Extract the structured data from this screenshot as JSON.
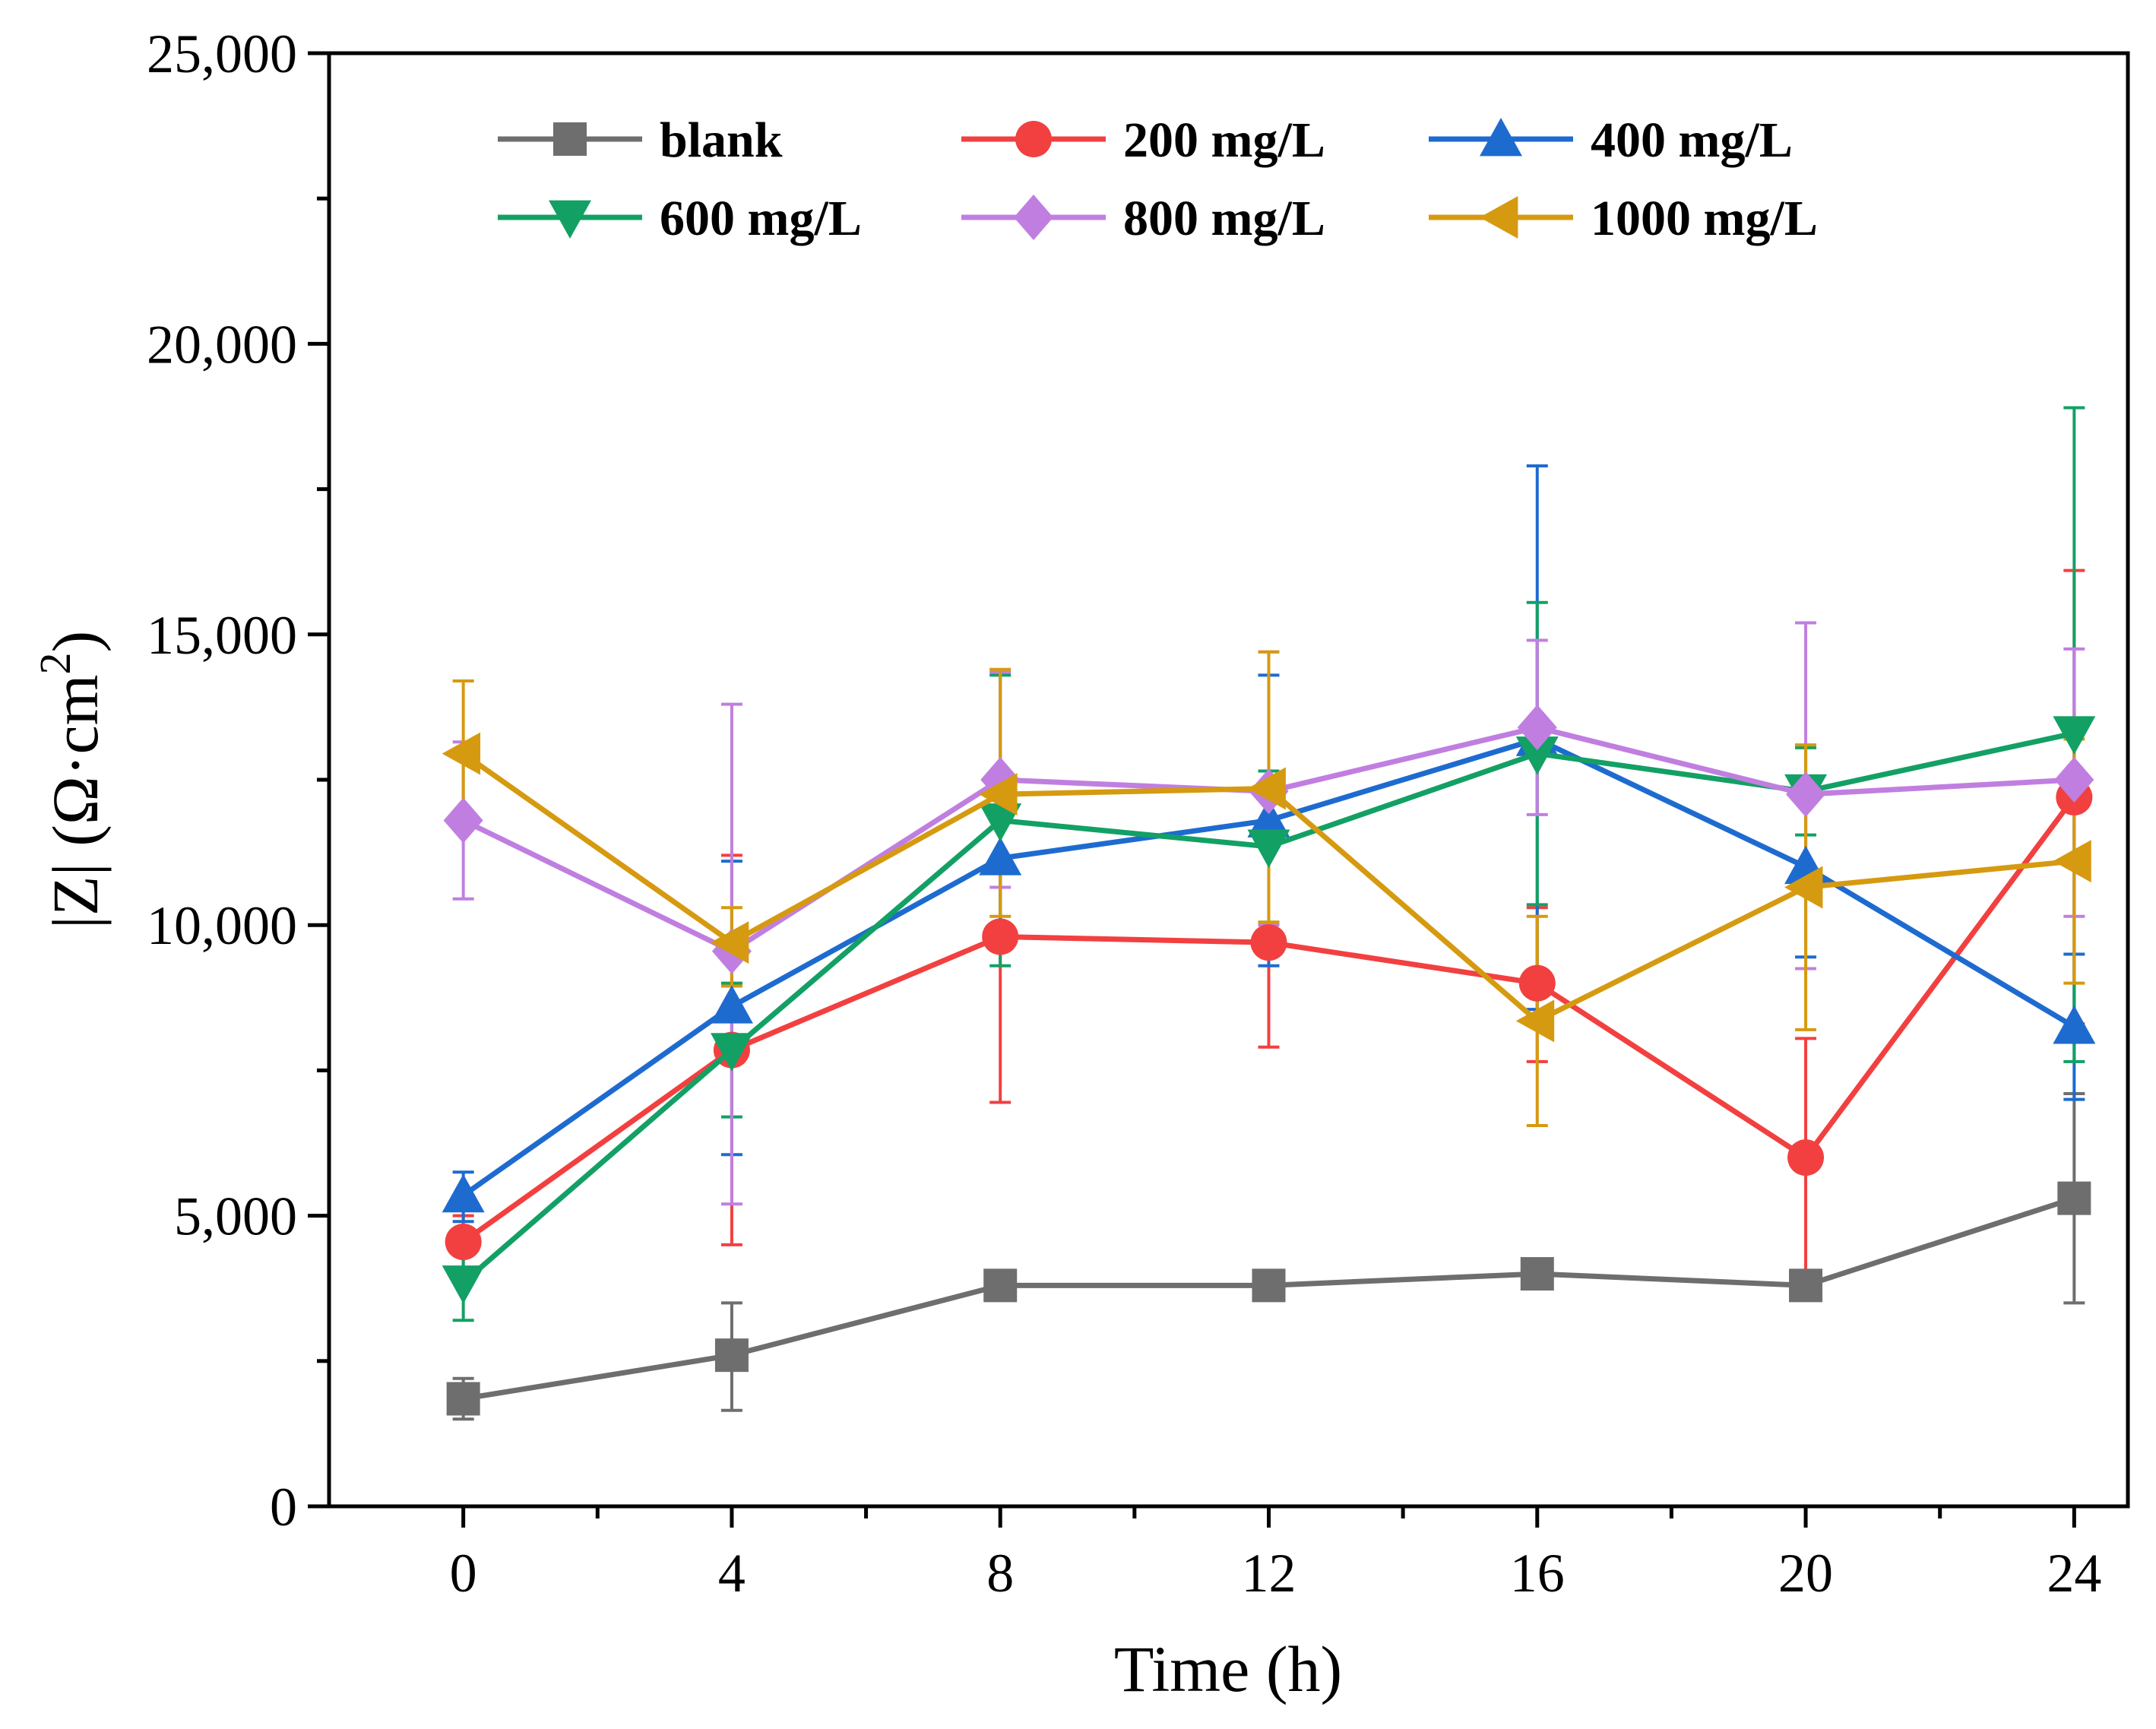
{
  "chart_data": {
    "type": "line",
    "title": "",
    "xlabel": "Time (h)",
    "ylabel_main": "|Z| (Ω·cm",
    "ylabel_sup": "2",
    "ylabel_close": ")",
    "xlim": [
      -2,
      24.8
    ],
    "ylim": [
      0,
      25000
    ],
    "x": [
      0,
      4,
      8,
      12,
      16,
      20,
      24
    ],
    "x_ticks": [
      0,
      4,
      8,
      12,
      16,
      20,
      24
    ],
    "x_tick_labels": [
      "0",
      "4",
      "8",
      "12",
      "16",
      "20",
      "24"
    ],
    "y_ticks": [
      0,
      5000,
      10000,
      15000,
      20000,
      25000
    ],
    "y_tick_labels": [
      "0",
      "5,000",
      "10,000",
      "15,000",
      "20,000",
      "25,000"
    ],
    "legend_position": "top",
    "series": [
      {
        "name": "blank",
        "color": "#6e6e6e",
        "marker": "square",
        "values": [
          1850,
          2600,
          3800,
          3800,
          4000,
          3800,
          5300
        ],
        "err_low": [
          1500,
          1650,
          3650,
          3650,
          3850,
          3650,
          3500
        ],
        "err_high": [
          2200,
          3500,
          4000,
          4000,
          4150,
          4000,
          7100
        ]
      },
      {
        "name": "200 mg/L",
        "color": "#f24040",
        "marker": "circle",
        "values": [
          4550,
          7850,
          9800,
          9700,
          9000,
          6000,
          12200
        ],
        "err_low": [
          4100,
          4500,
          6950,
          7900,
          7650,
          3900,
          8300
        ],
        "err_high": [
          5000,
          11200,
          12500,
          11500,
          10300,
          8050,
          16100
        ]
      },
      {
        "name": "400 mg/L",
        "color": "#1e6bd0",
        "marker": "triangle-up",
        "values": [
          5350,
          8600,
          11150,
          11800,
          13200,
          11000,
          8250
        ],
        "err_low": [
          4900,
          6050,
          10000,
          9300,
          8550,
          9450,
          7000
        ],
        "err_high": [
          5750,
          11100,
          12300,
          14300,
          17900,
          12500,
          9500
        ]
      },
      {
        "name": "600 mg/L",
        "color": "#13a065",
        "marker": "triangle-down",
        "values": [
          3850,
          7850,
          11800,
          11350,
          12950,
          12300,
          13300
        ],
        "err_low": [
          3200,
          6700,
          9300,
          10050,
          10350,
          11550,
          7650
        ],
        "err_high": [
          4500,
          9000,
          14300,
          12650,
          15550,
          13050,
          18900
        ]
      },
      {
        "name": "800 mg/L",
        "color": "#c07fe0",
        "marker": "diamond",
        "values": [
          11800,
          9550,
          12500,
          12300,
          13400,
          12250,
          12500
        ],
        "err_low": [
          10450,
          5200,
          10650,
          10000,
          11900,
          9250,
          10150
        ],
        "err_high": [
          13150,
          13800,
          14350,
          14700,
          14900,
          15200,
          14750
        ]
      },
      {
        "name": "1000 mg/L",
        "color": "#d69a10",
        "marker": "triangle-left",
        "values": [
          12950,
          9700,
          12250,
          12350,
          8350,
          10650,
          11100
        ],
        "err_low": [
          11700,
          8950,
          10150,
          10050,
          6550,
          8200,
          9000
        ],
        "err_high": [
          14200,
          10300,
          14400,
          14700,
          10150,
          13100,
          13200
        ]
      }
    ]
  }
}
